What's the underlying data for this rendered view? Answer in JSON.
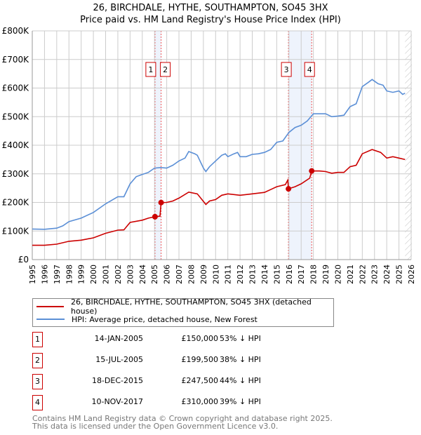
{
  "title": "26, BIRCHDALE, HYTHE, SOUTHAMPTON, SO45 3HX",
  "subtitle": "Price paid vs. HM Land Registry's House Price Index (HPI)",
  "chart_data": {
    "type": "line",
    "title": "26, BIRCHDALE, HYTHE, SOUTHAMPTON, SO45 3HX — Price paid vs. HM Land Registry's House Price Index (HPI)",
    "xlim": [
      1995,
      2026
    ],
    "ylim": [
      0,
      800000
    ],
    "x_ticks": [
      "1995",
      "1996",
      "1997",
      "1998",
      "1999",
      "2000",
      "2001",
      "2002",
      "2003",
      "2004",
      "2005",
      "2006",
      "2007",
      "2008",
      "2009",
      "2010",
      "2011",
      "2012",
      "2013",
      "2014",
      "2015",
      "2016",
      "2017",
      "2018",
      "2019",
      "2020",
      "2021",
      "2022",
      "2023",
      "2024",
      "2025",
      "2026"
    ],
    "y_ticks": [
      {
        "v": 0,
        "label": "£0"
      },
      {
        "v": 100000,
        "label": "£100K"
      },
      {
        "v": 200000,
        "label": "£200K"
      },
      {
        "v": 300000,
        "label": "£300K"
      },
      {
        "v": 400000,
        "label": "£400K"
      },
      {
        "v": 500000,
        "label": "£500K"
      },
      {
        "v": 600000,
        "label": "£600K"
      },
      {
        "v": 700000,
        "label": "£700K"
      },
      {
        "v": 800000,
        "label": "£800K"
      }
    ],
    "grid": true,
    "colors": {
      "property": "#cc0000",
      "hpi": "#5b8fd6",
      "shade": "#eef3fc"
    },
    "series": [
      {
        "name": "26, BIRCHDALE, HYTHE, SOUTHAMPTON, SO45 3HX (detached house)",
        "key": "property",
        "x": [
          1995,
          1996,
          1997,
          1998,
          1999,
          2000,
          2001,
          2002,
          2002.5,
          2003,
          2004,
          2004.5,
          2005.04,
          2005.45,
          2005.54,
          2006,
          2006.5,
          2007,
          2007.8,
          2008.5,
          2009.2,
          2009.5,
          2010,
          2010.5,
          2011,
          2012,
          2013,
          2014,
          2014.5,
          2015,
          2015.7,
          2015.9,
          2015.96,
          2016.5,
          2017,
          2017.7,
          2017.86,
          2018.5,
          2019,
          2019.5,
          2020,
          2020.5,
          2021,
          2021.5,
          2022,
          2022.8,
          2023.5,
          2024,
          2024.5,
          2025,
          2025.5
        ],
        "y": [
          50000,
          50000,
          54000,
          64000,
          68000,
          76000,
          92000,
          103000,
          104000,
          130000,
          138000,
          145000,
          150000,
          152000,
          199500,
          200000,
          205000,
          215000,
          236000,
          230000,
          193000,
          205000,
          210000,
          225000,
          230000,
          225000,
          230000,
          235000,
          245000,
          255000,
          262000,
          278000,
          247500,
          255000,
          265000,
          285000,
          310000,
          310000,
          308000,
          302000,
          305000,
          305000,
          325000,
          330000,
          370000,
          385000,
          375000,
          355000,
          360000,
          355000,
          350000
        ]
      },
      {
        "name": "HPI: Average price, detached house, New Forest",
        "key": "hpi",
        "x": [
          1995,
          1996,
          1997,
          1997.5,
          1998,
          1999,
          2000,
          2001,
          2002,
          2002.5,
          2003,
          2003.5,
          2004,
          2004.5,
          2005,
          2005.5,
          2006,
          2006.5,
          2007,
          2007.5,
          2007.8,
          2008.3,
          2008.5,
          2009,
          2009.2,
          2009.5,
          2010,
          2010.5,
          2010.8,
          2011,
          2011.5,
          2011.8,
          2012,
          2012.5,
          2013,
          2013.5,
          2014,
          2014.5,
          2015,
          2015.5,
          2016,
          2016.5,
          2017,
          2017.5,
          2018,
          2018.5,
          2019,
          2019.5,
          2020,
          2020.5,
          2021,
          2021.5,
          2022,
          2022.5,
          2022.8,
          2023.3,
          2023.7,
          2024,
          2024.5,
          2025,
          2025.3,
          2025.5
        ],
        "y": [
          107000,
          106000,
          110000,
          118000,
          133000,
          145000,
          165000,
          195000,
          220000,
          220000,
          265000,
          290000,
          298000,
          305000,
          320000,
          322000,
          320000,
          330000,
          345000,
          355000,
          378000,
          370000,
          365000,
          320000,
          308000,
          325000,
          345000,
          365000,
          370000,
          360000,
          370000,
          375000,
          360000,
          360000,
          368000,
          370000,
          375000,
          385000,
          410000,
          415000,
          445000,
          462000,
          470000,
          485000,
          510000,
          510000,
          510000,
          500000,
          502000,
          505000,
          535000,
          545000,
          605000,
          620000,
          630000,
          615000,
          610000,
          590000,
          585000,
          590000,
          578000,
          582000
        ]
      }
    ],
    "sales": [
      {
        "id": "1",
        "x": 2005.04,
        "y": 150000
      },
      {
        "id": "2",
        "x": 2005.54,
        "y": 199500
      },
      {
        "id": "3",
        "x": 2015.96,
        "y": 247500
      },
      {
        "id": "4",
        "x": 2017.86,
        "y": 310000
      }
    ],
    "shaded_ranges": [
      [
        2005.04,
        2005.54
      ],
      [
        2015.96,
        2017.86
      ]
    ],
    "hatched_from": 2025.5
  },
  "legend": {
    "property": "26, BIRCHDALE, HYTHE, SOUTHAMPTON, SO45 3HX (detached house)",
    "hpi": "HPI: Average price, detached house, New Forest"
  },
  "transactions": [
    {
      "id": "1",
      "date": "14-JAN-2005",
      "price": "£150,000",
      "hpi": "53% ↓ HPI"
    },
    {
      "id": "2",
      "date": "15-JUL-2005",
      "price": "£199,500",
      "hpi": "38% ↓ HPI"
    },
    {
      "id": "3",
      "date": "18-DEC-2015",
      "price": "£247,500",
      "hpi": "44% ↓ HPI"
    },
    {
      "id": "4",
      "date": "10-NOV-2017",
      "price": "£310,000",
      "hpi": "39% ↓ HPI"
    }
  ],
  "footer": {
    "line1": "Contains HM Land Registry data © Crown copyright and database right 2025.",
    "line2": "This data is licensed under the Open Government Licence v3.0."
  }
}
